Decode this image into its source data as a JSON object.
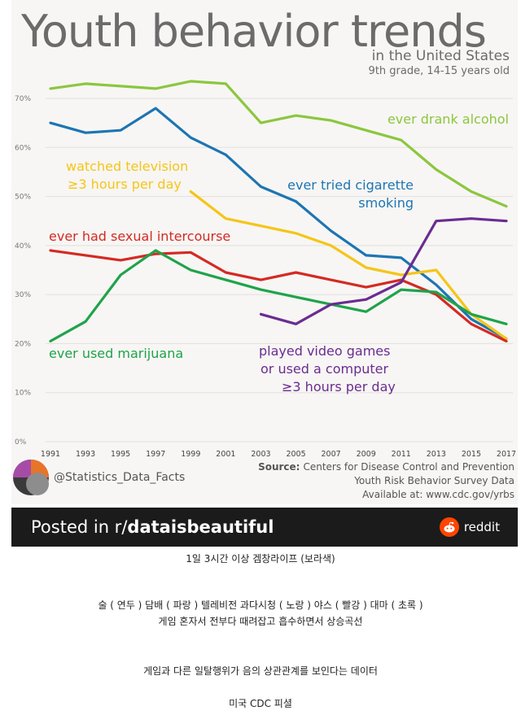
{
  "chart_data": {
    "type": "line",
    "title": "Youth behavior trends",
    "subtitle": "in the United States",
    "subtitle2": "9th grade, 14-15 years old",
    "ylim": [
      0,
      70
    ],
    "yticks": [
      "0%",
      "10%",
      "20%",
      "30%",
      "40%",
      "50%",
      "60%",
      "70%"
    ],
    "x": [
      1991,
      1993,
      1995,
      1997,
      1999,
      2001,
      2003,
      2005,
      2007,
      2009,
      2011,
      2013,
      2015,
      2017
    ],
    "xtick_labels": [
      "1991",
      "1993",
      "1995",
      "1997",
      "1999",
      "2001",
      "2003",
      "2005",
      "2007",
      "2009",
      "2011",
      "2013",
      "2015",
      "2017"
    ],
    "series": [
      {
        "name": "ever drank alcohol",
        "label_lines": [
          "ever drank alcohol"
        ],
        "color": "#8cc63f",
        "values": [
          72,
          73,
          72.5,
          72,
          73.5,
          73,
          65,
          66.5,
          65.5,
          63.5,
          61.5,
          55.5,
          51,
          48
        ]
      },
      {
        "name": "ever tried cigarette smoking",
        "label_lines": [
          "ever tried cigarette",
          "smoking"
        ],
        "color": "#1d75b3",
        "values": [
          65,
          63,
          63.5,
          68,
          62,
          58.5,
          52,
          49,
          43,
          38,
          37.5,
          32,
          25,
          21
        ]
      },
      {
        "name": "watched television ≥3 hours per day",
        "label_lines": [
          "watched television",
          "≥3 hours per day"
        ],
        "color": "#f5c518",
        "values": [
          null,
          null,
          null,
          null,
          51,
          45.5,
          44,
          42.5,
          40,
          35.5,
          34,
          35,
          26,
          21
        ]
      },
      {
        "name": "ever had sexual intercourse",
        "label_lines": [
          "ever had sexual intercourse"
        ],
        "color": "#d42a23",
        "values": [
          39,
          38,
          37,
          38.3,
          38.6,
          34.5,
          33,
          34.5,
          33,
          31.5,
          33,
          30,
          24,
          20.5
        ]
      },
      {
        "name": "ever used marijuana",
        "label_lines": [
          "ever used marijuana"
        ],
        "color": "#1fa34a",
        "values": [
          20.5,
          24.5,
          34,
          39,
          35,
          33,
          31,
          29.5,
          28,
          26.5,
          31,
          30.5,
          26,
          24
        ]
      },
      {
        "name": "played video games or used a computer ≥3 hours per day",
        "label_lines": [
          "played video games",
          "or used a computer",
          "≥3 hours per day"
        ],
        "color": "#6a2c91",
        "values": [
          null,
          null,
          null,
          null,
          null,
          null,
          26,
          24,
          28,
          29,
          32.5,
          45,
          45.5,
          45
        ]
      }
    ],
    "handle": "@Statistics_Data_Facts",
    "source_label": "Source:",
    "source_lines": [
      "Centers for Disease Control and Prevention",
      "Youth Risk Behavior Survey Data",
      "Available at: www.cdc.gov/yrbs"
    ]
  },
  "footer_bar": {
    "posted_prefix": "Posted in r/",
    "subreddit": "dataisbeautiful",
    "brand": "reddit"
  },
  "captions": {
    "line1": "1일 3시간 이상 겜창라이프 (보라색)",
    "line2": "술 ( 연두 )  담배 ( 파랑 )  텔레비전 과다시청 ( 노랑 )  야스 ( 빨강 )  대마 ( 초록 )",
    "line3": "게임 혼자서 전부다 때려잡고 흡수하면서 상승곡선",
    "line4": "게임과 다른 일탈행위가 음의 상관관계를 보인다는 데이터",
    "line5": "미국 CDC 피셜"
  }
}
